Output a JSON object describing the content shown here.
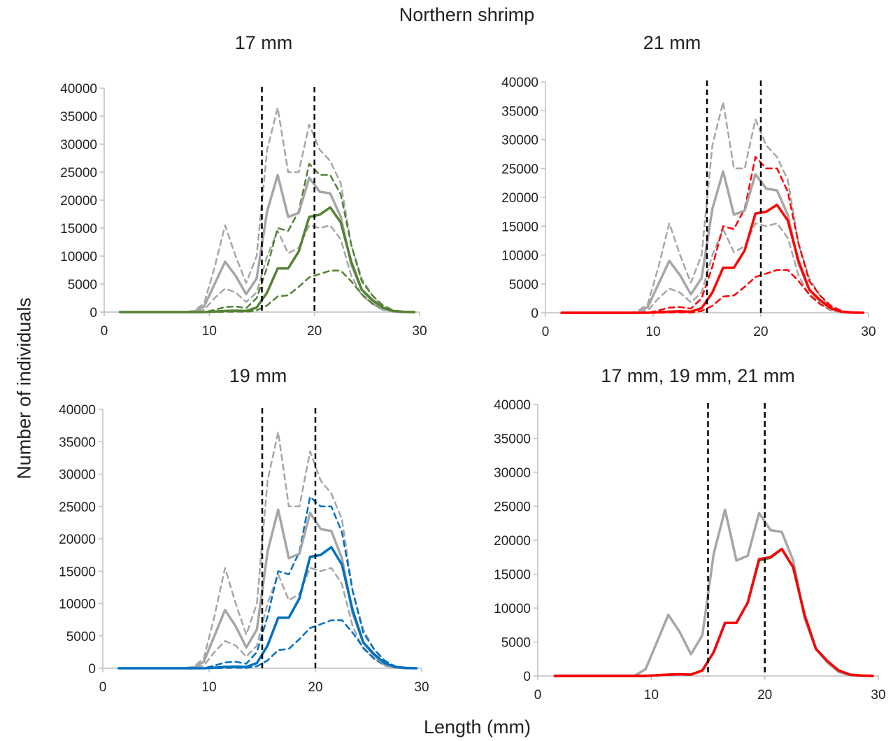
{
  "figure_title": "Northern shrimp",
  "y_axis_title": "Number of individuals",
  "x_axis_title": "Length (mm)",
  "colors": {
    "gray": "#A6A6A6",
    "green": "#548235",
    "red": "#FF0000",
    "blue": "#0070C0",
    "reference_line": "#000000"
  },
  "chart_data": [
    {
      "type": "line",
      "title": "17 mm",
      "xlim": [
        0,
        30
      ],
      "ylim": [
        0,
        40000
      ],
      "x_ticks": [
        "0",
        "10",
        "20",
        "30"
      ],
      "y_ticks": [
        "0",
        "5000",
        "10000",
        "15000",
        "20000",
        "25000",
        "30000",
        "35000",
        "40000"
      ],
      "vertical_reference_lines": [
        15,
        20
      ],
      "x": [
        1.5,
        2.5,
        3.5,
        4.5,
        5.5,
        6.5,
        7.5,
        8.5,
        9.5,
        10.5,
        11.5,
        12.5,
        13.5,
        14.5,
        15.5,
        16.5,
        17.5,
        18.5,
        19.5,
        20.5,
        21.5,
        22.5,
        23.5,
        24.5,
        25.5,
        26.5,
        27.5,
        28.5,
        29.5
      ],
      "series": [
        {
          "color": "gray",
          "style": "solid",
          "values": [
            0,
            0,
            0,
            0,
            0,
            0,
            0,
            0,
            1000,
            5000,
            9000,
            6500,
            3200,
            6000,
            18000,
            24500,
            17000,
            17700,
            24000,
            21500,
            21200,
            17000,
            8500,
            4000,
            2000,
            600,
            100,
            0,
            0
          ]
        },
        {
          "color": "gray",
          "style": "dashed",
          "values": [
            0,
            0,
            0,
            0,
            0,
            0,
            0,
            200,
            1500,
            8000,
            15500,
            10000,
            5200,
            10000,
            29000,
            36500,
            25000,
            25000,
            33500,
            29000,
            27000,
            23000,
            12000,
            6000,
            3000,
            900,
            150,
            0,
            0
          ]
        },
        {
          "color": "gray",
          "style": "dashed",
          "values": [
            0,
            0,
            0,
            0,
            0,
            0,
            0,
            0,
            400,
            2500,
            4200,
            3500,
            1800,
            3500,
            10000,
            14500,
            10500,
            11500,
            15500,
            15000,
            15500,
            13000,
            6500,
            3000,
            1500,
            400,
            60,
            0,
            0
          ]
        },
        {
          "color": "green",
          "style": "solid",
          "values": [
            0,
            0,
            0,
            0,
            0,
            0,
            0,
            0,
            0,
            100,
            200,
            250,
            200,
            800,
            3500,
            7800,
            7800,
            10800,
            17000,
            17400,
            18700,
            16000,
            9000,
            4000,
            2200,
            800,
            200,
            50,
            0
          ]
        },
        {
          "color": "green",
          "style": "dashed",
          "values": [
            0,
            0,
            0,
            0,
            0,
            0,
            0,
            0,
            0,
            400,
            900,
            1000,
            700,
            2500,
            8000,
            15000,
            14500,
            18000,
            26500,
            24500,
            24500,
            21000,
            12000,
            5500,
            3000,
            1200,
            300,
            50,
            0
          ]
        },
        {
          "color": "green",
          "style": "dashed",
          "values": [
            0,
            0,
            0,
            0,
            0,
            0,
            0,
            0,
            0,
            0,
            50,
            80,
            50,
            300,
            1200,
            2800,
            3000,
            4500,
            6200,
            6800,
            7400,
            7400,
            5500,
            3200,
            1500,
            500,
            100,
            0,
            0
          ]
        }
      ]
    },
    {
      "type": "line",
      "title": "21 mm",
      "xlim": [
        0,
        30
      ],
      "ylim": [
        0,
        40000
      ],
      "x_ticks": [
        "0",
        "10",
        "20",
        "30"
      ],
      "y_ticks": [
        "0",
        "5000",
        "10000",
        "15000",
        "20000",
        "25000",
        "30000",
        "35000",
        "40000"
      ],
      "vertical_reference_lines": [
        15,
        20
      ],
      "x": [
        1.5,
        2.5,
        3.5,
        4.5,
        5.5,
        6.5,
        7.5,
        8.5,
        9.5,
        10.5,
        11.5,
        12.5,
        13.5,
        14.5,
        15.5,
        16.5,
        17.5,
        18.5,
        19.5,
        20.5,
        21.5,
        22.5,
        23.5,
        24.5,
        25.5,
        26.5,
        27.5,
        28.5,
        29.5
      ],
      "series": [
        {
          "color": "gray",
          "style": "solid",
          "values": [
            0,
            0,
            0,
            0,
            0,
            0,
            0,
            0,
            1000,
            5000,
            9000,
            6500,
            3200,
            6000,
            18000,
            24500,
            17000,
            17700,
            24000,
            21500,
            21200,
            17000,
            8500,
            4000,
            2000,
            600,
            100,
            0,
            0
          ]
        },
        {
          "color": "gray",
          "style": "dashed",
          "values": [
            0,
            0,
            0,
            0,
            0,
            0,
            0,
            200,
            1500,
            8000,
            15500,
            10000,
            5200,
            10000,
            29000,
            36500,
            25000,
            25000,
            33500,
            29000,
            27000,
            23000,
            12000,
            6000,
            3000,
            900,
            150,
            0,
            0
          ]
        },
        {
          "color": "gray",
          "style": "dashed",
          "values": [
            0,
            0,
            0,
            0,
            0,
            0,
            0,
            0,
            400,
            2500,
            4200,
            3500,
            1800,
            3500,
            10000,
            14500,
            10500,
            11500,
            15500,
            15000,
            15500,
            13000,
            6500,
            3000,
            1500,
            400,
            60,
            0,
            0
          ]
        },
        {
          "color": "red",
          "style": "solid",
          "values": [
            0,
            0,
            0,
            0,
            0,
            0,
            0,
            0,
            0,
            100,
            200,
            250,
            200,
            800,
            3500,
            7800,
            7800,
            10800,
            17200,
            17500,
            18700,
            16000,
            9000,
            4000,
            2200,
            800,
            200,
            50,
            0
          ]
        },
        {
          "color": "red",
          "style": "dashed",
          "values": [
            0,
            0,
            0,
            0,
            0,
            0,
            0,
            0,
            0,
            400,
            900,
            1000,
            700,
            2500,
            8000,
            15000,
            14500,
            18000,
            27000,
            25000,
            25000,
            21000,
            12000,
            5500,
            3000,
            1200,
            300,
            50,
            0
          ]
        },
        {
          "color": "red",
          "style": "dashed",
          "values": [
            0,
            0,
            0,
            0,
            0,
            0,
            0,
            0,
            0,
            0,
            50,
            80,
            50,
            300,
            1200,
            2800,
            3000,
            4500,
            6200,
            6800,
            7400,
            7400,
            5500,
            3200,
            1500,
            500,
            100,
            0,
            0
          ]
        }
      ]
    },
    {
      "type": "line",
      "title": "19 mm",
      "xlim": [
        0,
        30
      ],
      "ylim": [
        0,
        40000
      ],
      "x_ticks": [
        "0",
        "10",
        "20",
        "30"
      ],
      "y_ticks": [
        "0",
        "5000",
        "10000",
        "15000",
        "20000",
        "25000",
        "30000",
        "35000",
        "40000"
      ],
      "vertical_reference_lines": [
        15,
        20
      ],
      "x": [
        1.5,
        2.5,
        3.5,
        4.5,
        5.5,
        6.5,
        7.5,
        8.5,
        9.5,
        10.5,
        11.5,
        12.5,
        13.5,
        14.5,
        15.5,
        16.5,
        17.5,
        18.5,
        19.5,
        20.5,
        21.5,
        22.5,
        23.5,
        24.5,
        25.5,
        26.5,
        27.5,
        28.5,
        29.5
      ],
      "series": [
        {
          "color": "gray",
          "style": "solid",
          "values": [
            0,
            0,
            0,
            0,
            0,
            0,
            0,
            0,
            1000,
            5000,
            9000,
            6500,
            3200,
            6000,
            18000,
            24500,
            17000,
            17700,
            24000,
            21500,
            21200,
            17000,
            8500,
            4000,
            2000,
            600,
            100,
            0,
            0
          ]
        },
        {
          "color": "gray",
          "style": "dashed",
          "values": [
            0,
            0,
            0,
            0,
            0,
            0,
            0,
            200,
            1500,
            8000,
            15500,
            10000,
            5200,
            10000,
            29000,
            36500,
            25000,
            25000,
            33500,
            29000,
            27000,
            23000,
            12000,
            6000,
            3000,
            900,
            150,
            0,
            0
          ]
        },
        {
          "color": "gray",
          "style": "dashed",
          "values": [
            0,
            0,
            0,
            0,
            0,
            0,
            0,
            0,
            400,
            2500,
            4200,
            3500,
            1800,
            3500,
            10000,
            14500,
            10500,
            11500,
            15500,
            15000,
            15500,
            13000,
            6500,
            3000,
            1500,
            400,
            60,
            0,
            0
          ]
        },
        {
          "color": "blue",
          "style": "solid",
          "values": [
            0,
            0,
            0,
            0,
            0,
            0,
            0,
            0,
            0,
            100,
            200,
            250,
            200,
            800,
            3500,
            7800,
            7800,
            10800,
            17200,
            17500,
            18700,
            16000,
            9000,
            4000,
            2200,
            800,
            200,
            50,
            0
          ]
        },
        {
          "color": "blue",
          "style": "dashed",
          "values": [
            0,
            0,
            0,
            0,
            0,
            0,
            0,
            0,
            0,
            400,
            900,
            1000,
            700,
            2500,
            8000,
            15000,
            14500,
            18000,
            26500,
            25000,
            25000,
            21000,
            12000,
            5500,
            3000,
            1200,
            300,
            50,
            0
          ]
        },
        {
          "color": "blue",
          "style": "dashed",
          "values": [
            0,
            0,
            0,
            0,
            0,
            0,
            0,
            0,
            0,
            0,
            50,
            80,
            50,
            300,
            1200,
            2800,
            3000,
            4500,
            6200,
            6800,
            7400,
            7400,
            5500,
            3200,
            1500,
            500,
            100,
            0,
            0
          ]
        }
      ]
    },
    {
      "type": "line",
      "title": "17 mm, 19 mm, 21 mm",
      "xlim": [
        0,
        30
      ],
      "ylim": [
        0,
        40000
      ],
      "x_ticks": [
        "0",
        "10",
        "20",
        "30"
      ],
      "y_ticks": [
        "0",
        "5000",
        "10000",
        "15000",
        "20000",
        "25000",
        "30000",
        "35000",
        "40000"
      ],
      "vertical_reference_lines": [
        15,
        20
      ],
      "x": [
        1.5,
        2.5,
        3.5,
        4.5,
        5.5,
        6.5,
        7.5,
        8.5,
        9.5,
        10.5,
        11.5,
        12.5,
        13.5,
        14.5,
        15.5,
        16.5,
        17.5,
        18.5,
        19.5,
        20.5,
        21.5,
        22.5,
        23.5,
        24.5,
        25.5,
        26.5,
        27.5,
        28.5,
        29.5
      ],
      "series": [
        {
          "color": "gray",
          "style": "solid",
          "values": [
            0,
            0,
            0,
            0,
            0,
            0,
            0,
            0,
            1000,
            5000,
            9000,
            6500,
            3200,
            6000,
            18000,
            24500,
            17000,
            17700,
            24000,
            21500,
            21200,
            17000,
            8500,
            4000,
            2000,
            600,
            100,
            0,
            0
          ]
        },
        {
          "color": "green",
          "style": "solid",
          "values": [
            0,
            0,
            0,
            0,
            0,
            0,
            0,
            0,
            0,
            100,
            200,
            250,
            200,
            800,
            3500,
            7800,
            7800,
            10800,
            17000,
            17400,
            18700,
            16000,
            9000,
            4000,
            2200,
            800,
            200,
            50,
            0
          ]
        },
        {
          "color": "blue",
          "style": "solid",
          "values": [
            0,
            0,
            0,
            0,
            0,
            0,
            0,
            0,
            0,
            100,
            200,
            250,
            200,
            800,
            3500,
            7800,
            7800,
            10800,
            17200,
            17500,
            18700,
            16000,
            9000,
            4000,
            2200,
            800,
            200,
            50,
            0
          ]
        },
        {
          "color": "red",
          "style": "solid",
          "values": [
            0,
            0,
            0,
            0,
            0,
            0,
            0,
            0,
            0,
            100,
            200,
            250,
            200,
            800,
            3500,
            7800,
            7800,
            10800,
            17200,
            17500,
            18700,
            16000,
            9000,
            4000,
            2200,
            800,
            200,
            50,
            0
          ]
        }
      ]
    }
  ]
}
